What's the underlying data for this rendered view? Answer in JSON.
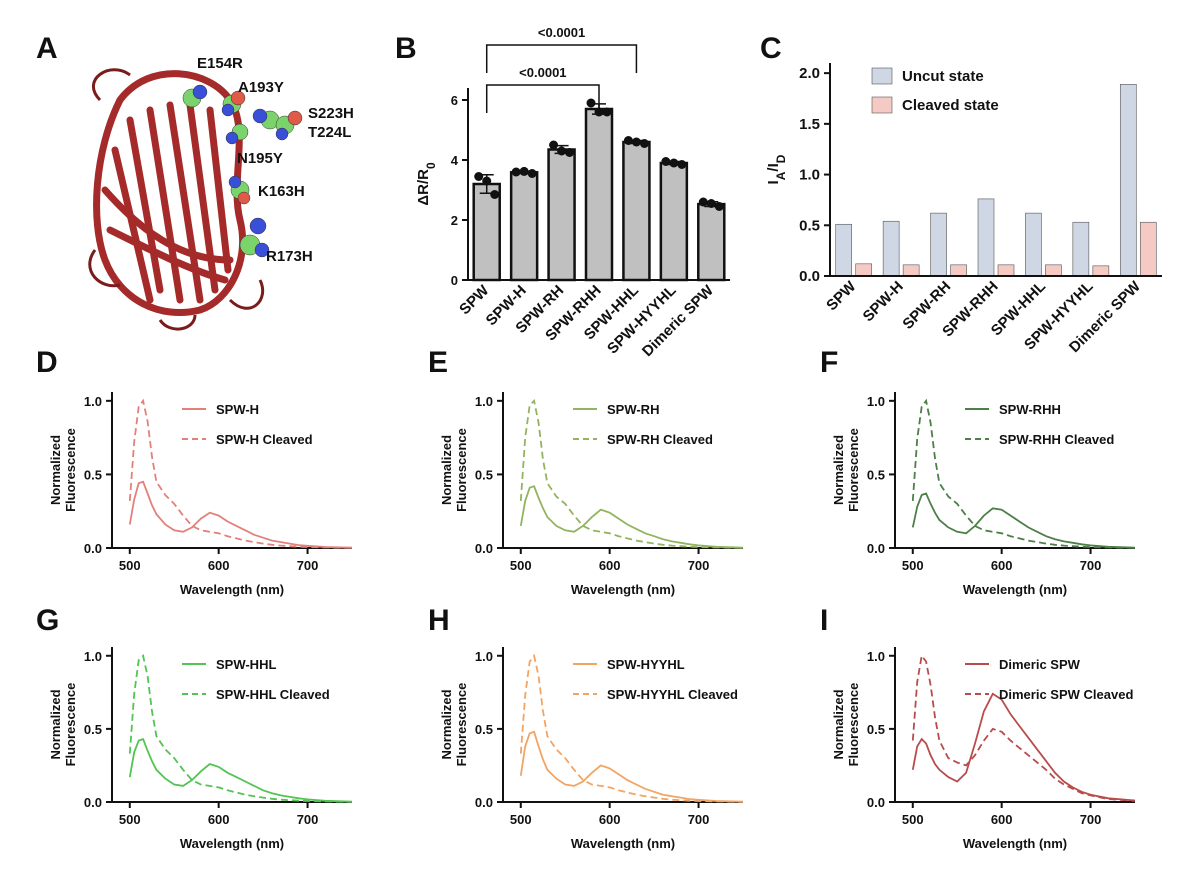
{
  "structure": {
    "panel": "A",
    "labels": [
      "E154R",
      "A193Y",
      "S223H",
      "T224L",
      "N195Y",
      "K163H",
      "R173H"
    ]
  },
  "chart_data": [
    {
      "type": "bar",
      "panel": "B",
      "ylabel": [
        {
          "text": "ΔR/R"
        },
        {
          "text": "0",
          "sub": true
        }
      ],
      "categories": [
        "SPW",
        "SPW-H",
        "SPW-RH",
        "SPW-RHH",
        "SPW-HHL",
        "SPW-HYYHL",
        "Dimeric SPW"
      ],
      "values": [
        3.2,
        3.59,
        4.35,
        5.7,
        4.6,
        3.9,
        2.53
      ],
      "errors": [
        0.31,
        0.04,
        0.13,
        0.17,
        0.05,
        0.05,
        0.08
      ],
      "points": [
        [
          3.45,
          3.3,
          2.85
        ],
        [
          3.6,
          3.62,
          3.55
        ],
        [
          4.5,
          4.3,
          4.25
        ],
        [
          5.9,
          5.6,
          5.6
        ],
        [
          4.65,
          4.6,
          4.55
        ],
        [
          3.95,
          3.9,
          3.85
        ],
        [
          2.6,
          2.55,
          2.45
        ]
      ],
      "color": "#c0c0c0",
      "ylim": [
        0,
        6.4
      ],
      "yticks": [
        0,
        2,
        4,
        6
      ],
      "annotations": [
        {
          "text": "<0.0001",
          "from": 0,
          "to": 3
        },
        {
          "text": "<0.0001",
          "from": 0,
          "to": 4
        }
      ]
    },
    {
      "type": "grouped_bar",
      "panel": "C",
      "ylabel": [
        {
          "text": "I"
        },
        {
          "text": "A",
          "sub": true
        },
        {
          "text": "/I"
        },
        {
          "text": "D",
          "sub": true
        }
      ],
      "categories": [
        "SPW",
        "SPW-H",
        "SPW-RH",
        "SPW-RHH",
        "SPW-HHL",
        "SPW-HYYHL",
        "Dimeric SPW"
      ],
      "series": [
        {
          "name": "Uncut state",
          "color": "#cfd6e4",
          "values": [
            0.51,
            0.54,
            0.62,
            0.76,
            0.62,
            0.53,
            1.89
          ]
        },
        {
          "name": "Cleaved state",
          "color": "#f5cac4",
          "values": [
            0.12,
            0.11,
            0.11,
            0.11,
            0.11,
            0.1,
            0.53
          ]
        }
      ],
      "ylim": [
        0,
        2.1
      ],
      "yticks": [
        {
          "value": 0,
          "label": "0.0"
        },
        0.5,
        {
          "value": 1,
          "label": "1.0"
        },
        1.5,
        {
          "value": 2,
          "label": "2.0"
        }
      ],
      "legend": "upper left"
    },
    {
      "type": "line",
      "panel": "D",
      "ylabel": [
        "Normalized",
        "Fluorescence"
      ],
      "xlabel": "Wavelength (nm)",
      "x": [
        500,
        505,
        510,
        515,
        520,
        525,
        530,
        540,
        550,
        560,
        570,
        580,
        590,
        600,
        610,
        620,
        630,
        640,
        650,
        660,
        670,
        680,
        690,
        700,
        720,
        750
      ],
      "series": [
        {
          "name": "SPW-H",
          "color": "#e3807a",
          "linestyle": "solid",
          "values": [
            0.16,
            0.33,
            0.44,
            0.45,
            0.37,
            0.29,
            0.23,
            0.16,
            0.12,
            0.11,
            0.14,
            0.2,
            0.24,
            0.22,
            0.18,
            0.15,
            0.12,
            0.09,
            0.07,
            0.05,
            0.04,
            0.03,
            0.02,
            0.015,
            0.007,
            0.002
          ]
        },
        {
          "name": "SPW-H Cleaved",
          "color": "#e3807a",
          "linestyle": "dashed",
          "values": [
            0.32,
            0.72,
            0.96,
            1.0,
            0.86,
            0.62,
            0.45,
            0.36,
            0.3,
            0.22,
            0.15,
            0.12,
            0.11,
            0.1,
            0.08,
            0.065,
            0.05,
            0.04,
            0.03,
            0.022,
            0.016,
            0.012,
            0.009,
            0.007,
            0.004,
            0.001
          ]
        }
      ],
      "xlim": [
        480,
        750
      ],
      "xticks": [
        500,
        600,
        700
      ],
      "ylim": [
        0,
        1.06
      ],
      "yticks": [
        {
          "value": 0,
          "label": "0.0"
        },
        0.5,
        {
          "value": 1,
          "label": "1.0"
        }
      ]
    },
    {
      "type": "line",
      "panel": "E",
      "ylabel": [
        "Normalized",
        "Fluorescence"
      ],
      "xlabel": "Wavelength (nm)",
      "x": [
        500,
        505,
        510,
        515,
        520,
        525,
        530,
        540,
        550,
        560,
        570,
        580,
        590,
        600,
        610,
        620,
        630,
        640,
        650,
        660,
        670,
        680,
        690,
        700,
        720,
        750
      ],
      "series": [
        {
          "name": "SPW-RH",
          "color": "#92b460",
          "linestyle": "solid",
          "values": [
            0.15,
            0.32,
            0.41,
            0.42,
            0.34,
            0.27,
            0.21,
            0.15,
            0.12,
            0.11,
            0.15,
            0.21,
            0.26,
            0.24,
            0.2,
            0.16,
            0.13,
            0.1,
            0.08,
            0.06,
            0.045,
            0.035,
            0.025,
            0.018,
            0.008,
            0.002
          ]
        },
        {
          "name": "SPW-RH Cleaved",
          "color": "#92b460",
          "linestyle": "dashed",
          "values": [
            0.32,
            0.75,
            0.97,
            1.0,
            0.85,
            0.6,
            0.44,
            0.35,
            0.3,
            0.22,
            0.15,
            0.12,
            0.11,
            0.1,
            0.08,
            0.065,
            0.05,
            0.04,
            0.03,
            0.022,
            0.016,
            0.012,
            0.009,
            0.007,
            0.004,
            0.001
          ]
        }
      ],
      "xlim": [
        480,
        750
      ],
      "xticks": [
        500,
        600,
        700
      ],
      "ylim": [
        0,
        1.06
      ],
      "yticks": [
        {
          "value": 0,
          "label": "0.0"
        },
        0.5,
        {
          "value": 1,
          "label": "1.0"
        }
      ]
    },
    {
      "type": "line",
      "panel": "F",
      "ylabel": [
        "Normalized",
        "Fluorescence"
      ],
      "xlabel": "Wavelength (nm)",
      "x": [
        500,
        505,
        510,
        515,
        520,
        525,
        530,
        540,
        550,
        560,
        570,
        580,
        590,
        600,
        610,
        620,
        630,
        640,
        650,
        660,
        670,
        680,
        690,
        700,
        720,
        750
      ],
      "series": [
        {
          "name": "SPW-RHH",
          "color": "#4e7f48",
          "linestyle": "solid",
          "values": [
            0.14,
            0.28,
            0.36,
            0.37,
            0.3,
            0.24,
            0.19,
            0.14,
            0.11,
            0.1,
            0.15,
            0.22,
            0.27,
            0.26,
            0.22,
            0.18,
            0.14,
            0.11,
            0.08,
            0.06,
            0.045,
            0.035,
            0.025,
            0.018,
            0.008,
            0.002
          ]
        },
        {
          "name": "SPW-RHH Cleaved",
          "color": "#4e7f48",
          "linestyle": "dashed",
          "values": [
            0.32,
            0.74,
            0.96,
            1.0,
            0.85,
            0.61,
            0.44,
            0.35,
            0.3,
            0.22,
            0.15,
            0.12,
            0.11,
            0.1,
            0.08,
            0.065,
            0.05,
            0.04,
            0.03,
            0.022,
            0.016,
            0.012,
            0.009,
            0.007,
            0.004,
            0.001
          ]
        }
      ],
      "xlim": [
        480,
        750
      ],
      "xticks": [
        500,
        600,
        700
      ],
      "ylim": [
        0,
        1.06
      ],
      "yticks": [
        {
          "value": 0,
          "label": "0.0"
        },
        0.5,
        {
          "value": 1,
          "label": "1.0"
        }
      ]
    },
    {
      "type": "line",
      "panel": "G",
      "ylabel": [
        "Normalized",
        "Fluorescence"
      ],
      "xlabel": "Wavelength (nm)",
      "x": [
        500,
        505,
        510,
        515,
        520,
        525,
        530,
        540,
        550,
        560,
        570,
        580,
        590,
        600,
        610,
        620,
        630,
        640,
        650,
        660,
        670,
        680,
        690,
        700,
        720,
        750
      ],
      "series": [
        {
          "name": "SPW-HHL",
          "color": "#52c452",
          "linestyle": "solid",
          "values": [
            0.17,
            0.34,
            0.42,
            0.43,
            0.35,
            0.28,
            0.22,
            0.16,
            0.12,
            0.11,
            0.15,
            0.21,
            0.26,
            0.24,
            0.2,
            0.17,
            0.14,
            0.11,
            0.08,
            0.06,
            0.045,
            0.035,
            0.025,
            0.018,
            0.008,
            0.002
          ]
        },
        {
          "name": "SPW-HHL Cleaved",
          "color": "#52c452",
          "linestyle": "dashed",
          "values": [
            0.33,
            0.74,
            0.97,
            1.0,
            0.86,
            0.62,
            0.45,
            0.36,
            0.3,
            0.22,
            0.15,
            0.12,
            0.11,
            0.1,
            0.08,
            0.065,
            0.05,
            0.04,
            0.03,
            0.022,
            0.016,
            0.012,
            0.009,
            0.007,
            0.004,
            0.001
          ]
        }
      ],
      "xlim": [
        480,
        750
      ],
      "xticks": [
        500,
        600,
        700
      ],
      "ylim": [
        0,
        1.06
      ],
      "yticks": [
        {
          "value": 0,
          "label": "0.0"
        },
        0.5,
        {
          "value": 1,
          "label": "1.0"
        }
      ]
    },
    {
      "type": "line",
      "panel": "H",
      "ylabel": [
        "Normalized",
        "Fluorescence"
      ],
      "xlabel": "Wavelength (nm)",
      "x": [
        500,
        505,
        510,
        515,
        520,
        525,
        530,
        540,
        550,
        560,
        570,
        580,
        590,
        600,
        610,
        620,
        630,
        640,
        650,
        660,
        670,
        680,
        690,
        700,
        720,
        750
      ],
      "series": [
        {
          "name": "SPW-HYYHL",
          "color": "#f2a463",
          "linestyle": "solid",
          "values": [
            0.18,
            0.38,
            0.47,
            0.48,
            0.38,
            0.29,
            0.22,
            0.16,
            0.12,
            0.11,
            0.14,
            0.2,
            0.25,
            0.23,
            0.19,
            0.15,
            0.12,
            0.09,
            0.07,
            0.05,
            0.04,
            0.03,
            0.02,
            0.015,
            0.007,
            0.002
          ]
        },
        {
          "name": "SPW-HYYHL Cleaved",
          "color": "#f2a463",
          "linestyle": "dashed",
          "values": [
            0.33,
            0.73,
            0.96,
            1.0,
            0.86,
            0.62,
            0.45,
            0.36,
            0.3,
            0.22,
            0.15,
            0.12,
            0.11,
            0.1,
            0.08,
            0.065,
            0.05,
            0.04,
            0.03,
            0.022,
            0.016,
            0.012,
            0.009,
            0.007,
            0.004,
            0.001
          ]
        }
      ],
      "xlim": [
        480,
        750
      ],
      "xticks": [
        500,
        600,
        700
      ],
      "ylim": [
        0,
        1.06
      ],
      "yticks": [
        {
          "value": 0,
          "label": "0.0"
        },
        0.5,
        {
          "value": 1,
          "label": "1.0"
        }
      ]
    },
    {
      "type": "line",
      "panel": "I",
      "ylabel": [
        "Normalized",
        "Fluorescence"
      ],
      "xlabel": "Wavelength (nm)",
      "x": [
        500,
        505,
        510,
        515,
        520,
        525,
        530,
        540,
        550,
        560,
        570,
        580,
        590,
        600,
        610,
        620,
        630,
        640,
        650,
        660,
        670,
        680,
        690,
        700,
        720,
        750
      ],
      "series": [
        {
          "name": "Dimeric SPW",
          "color": "#b84c4c",
          "linestyle": "solid",
          "values": [
            0.22,
            0.38,
            0.43,
            0.4,
            0.32,
            0.26,
            0.22,
            0.17,
            0.14,
            0.2,
            0.4,
            0.62,
            0.74,
            0.7,
            0.6,
            0.52,
            0.44,
            0.36,
            0.28,
            0.2,
            0.14,
            0.1,
            0.07,
            0.05,
            0.025,
            0.01
          ]
        },
        {
          "name": "Dimeric SPW Cleaved",
          "color": "#b84c4c",
          "linestyle": "dashed",
          "values": [
            0.42,
            0.82,
            1.0,
            0.96,
            0.8,
            0.58,
            0.42,
            0.3,
            0.27,
            0.25,
            0.32,
            0.42,
            0.5,
            0.48,
            0.42,
            0.37,
            0.32,
            0.27,
            0.22,
            0.16,
            0.12,
            0.09,
            0.06,
            0.045,
            0.02,
            0.008
          ]
        }
      ],
      "xlim": [
        480,
        750
      ],
      "xticks": [
        500,
        600,
        700
      ],
      "ylim": [
        0,
        1.06
      ],
      "yticks": [
        {
          "value": 0,
          "label": "0.0"
        },
        0.5,
        {
          "value": 1,
          "label": "1.0"
        }
      ]
    }
  ]
}
